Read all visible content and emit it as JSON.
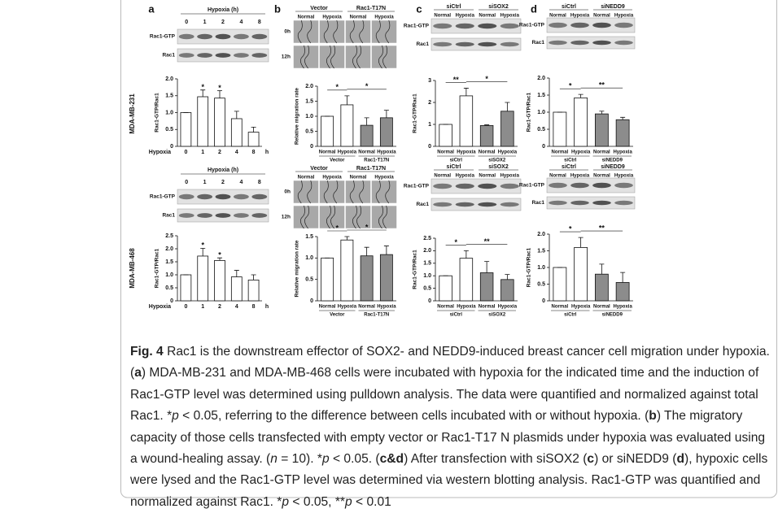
{
  "panels": [
    "a",
    "b",
    "c",
    "d"
  ],
  "cell_lines": [
    "MDA-MB-231",
    "MDA-MB-468"
  ],
  "blots": [
    {
      "header": "Hypoxia (h)",
      "lanes": [
        "0",
        "1",
        "2",
        "4",
        "8"
      ],
      "rows": [
        "Rac1-GTP",
        "Rac1"
      ]
    },
    {
      "header": "Hypoxia (h)",
      "lanes": [
        "0",
        "1",
        "2",
        "4",
        "8"
      ],
      "rows": [
        "Rac1-GTP",
        "Rac1"
      ]
    },
    {
      "groups": [
        "Vector",
        "Rac1-T17N"
      ],
      "lanes": [
        "Normal",
        "Hypoxia",
        "Normal",
        "Hypoxia"
      ],
      "rows": [
        "0h",
        "12h"
      ]
    },
    {
      "groups": [
        "Vector",
        "Rac1-T17N"
      ],
      "lanes": [
        "Normal",
        "Hypoxia",
        "Normal",
        "Hypoxia"
      ],
      "rows": [
        "0h",
        "12h"
      ]
    },
    {
      "groups": [
        "siCtrl",
        "siSOX2"
      ],
      "lanes": [
        "Normal",
        "Hypoxia",
        "Normal",
        "Hypoxia"
      ],
      "rows": [
        "Rac1-GTP",
        "Rac1"
      ]
    },
    {
      "groups": [
        "siCtrl",
        "siSOX2"
      ],
      "lanes": [
        "Normal",
        "Hypoxia",
        "Normal",
        "Hypoxia"
      ],
      "rows": [
        "Rac1-GTP",
        "Rac1"
      ]
    },
    {
      "groups": [
        "siCtrl",
        "siNEDD9"
      ],
      "lanes": [
        "Normal",
        "Hypoxia",
        "Normal",
        "Hypoxia"
      ],
      "rows": [
        "Rac1-GTP",
        "Rac1"
      ]
    },
    {
      "groups": [
        "siCtrl",
        "siNEDD9"
      ],
      "lanes": [
        "Normal",
        "Hypoxia",
        "Normal",
        "Hypoxia"
      ],
      "rows": [
        "Rac1-GTP",
        "Rac1"
      ]
    }
  ],
  "chart_data": [
    {
      "type": "bar",
      "ylabel": "Rac1-GTP/Rac1",
      "xlabel": "Hypoxia",
      "xunit": "h",
      "categories": [
        "0",
        "1",
        "2",
        "4",
        "8"
      ],
      "values": [
        1.0,
        1.47,
        1.43,
        0.82,
        0.42
      ],
      "errors": [
        0,
        0.2,
        0.22,
        0.22,
        0.15
      ],
      "colors": [
        "#ffffff",
        "#ffffff",
        "#ffffff",
        "#ffffff",
        "#ffffff"
      ],
      "ylim": [
        0,
        2
      ],
      "yticks": [
        0,
        0.5,
        {
          "value": 1,
          "label": "1.0"
        },
        1.5,
        {
          "value": 2,
          "label": "2.0"
        }
      ],
      "annotations": [
        {
          "text": "*",
          "at": 1
        },
        {
          "text": "*",
          "at": 2
        }
      ]
    },
    {
      "type": "bar",
      "ylabel": "Rac1-GTP/Rac1",
      "xlabel": "Hypoxia",
      "xunit": "h",
      "categories": [
        "0",
        "1",
        "2",
        "4",
        "8"
      ],
      "values": [
        1.0,
        1.72,
        1.55,
        0.92,
        0.8
      ],
      "errors": [
        0,
        0.3,
        0.1,
        0.25,
        0.2
      ],
      "colors": [
        "#ffffff",
        "#ffffff",
        "#ffffff",
        "#ffffff",
        "#ffffff"
      ],
      "ylim": [
        0,
        2.5
      ],
      "yticks": [
        0,
        0.5,
        {
          "value": 1,
          "label": "1.0"
        },
        1.5,
        {
          "value": 2,
          "label": "2.0"
        },
        2.5
      ],
      "annotations": [
        {
          "text": "*",
          "at": 1
        },
        {
          "text": "*",
          "at": 2
        }
      ]
    },
    {
      "type": "bar",
      "ylabel": "Relative migration rate",
      "categories": [
        "Normal",
        "Hypoxia",
        "Normal",
        "Hypoxia"
      ],
      "groups": [
        "Vector",
        "Rac1-T17N"
      ],
      "values": [
        1.0,
        1.38,
        0.7,
        0.95
      ],
      "errors": [
        0,
        0.3,
        0.25,
        0.25
      ],
      "colors": [
        "#ffffff",
        "#ffffff",
        "#8c8c8c",
        "#8c8c8c"
      ],
      "ylim": [
        0,
        2
      ],
      "yticks": [
        0,
        0.5,
        {
          "value": 1,
          "label": "1.0"
        },
        1.5,
        {
          "value": 2,
          "label": "2.0"
        }
      ],
      "annotations": [
        {
          "text": "*",
          "from": 0,
          "to": 1
        },
        {
          "text": "*",
          "from": 1,
          "to": 3
        }
      ]
    },
    {
      "type": "bar",
      "ylabel": "Relative migration rate",
      "categories": [
        "Normal",
        "Hypoxia",
        "Normal",
        "Hypoxia"
      ],
      "groups": [
        "Vector",
        "Rac1-T17N"
      ],
      "values": [
        1.0,
        1.42,
        1.05,
        1.08
      ],
      "errors": [
        0,
        0.08,
        0.2,
        0.2
      ],
      "colors": [
        "#ffffff",
        "#ffffff",
        "#8c8c8c",
        "#8c8c8c"
      ],
      "ylim": [
        0,
        1.5
      ],
      "yticks": [
        0,
        0.5,
        {
          "value": 1,
          "label": "1.0"
        },
        1.5
      ],
      "annotations": [
        {
          "text": "*",
          "from": 0,
          "to": 1
        },
        {
          "text": "*",
          "from": 1,
          "to": 3
        }
      ]
    },
    {
      "type": "bar",
      "ylabel": "Rac1-GTP/Rac1",
      "categories": [
        "Normal",
        "Hypoxia",
        "Normal",
        "Hypoxia"
      ],
      "groups": [
        "siCtrl",
        "siSOX2"
      ],
      "values": [
        1.0,
        2.3,
        0.95,
        1.6
      ],
      "errors": [
        0,
        0.35,
        0.03,
        0.4
      ],
      "colors": [
        "#ffffff",
        "#ffffff",
        "#8c8c8c",
        "#8c8c8c"
      ],
      "ylim": [
        0,
        3
      ],
      "yticks": [
        0,
        1,
        2,
        3
      ],
      "annotations": [
        {
          "text": "**",
          "from": 0,
          "to": 1
        },
        {
          "text": "*",
          "from": 1,
          "to": 3
        }
      ]
    },
    {
      "type": "bar",
      "ylabel": "Rac1-GTP/Rac1",
      "categories": [
        "Normal",
        "Hypoxia",
        "Normal",
        "Hypoxia"
      ],
      "groups": [
        "siCtrl",
        "siSOX2"
      ],
      "values": [
        1.0,
        1.7,
        1.12,
        0.85
      ],
      "errors": [
        0,
        0.3,
        0.45,
        0.2
      ],
      "colors": [
        "#ffffff",
        "#ffffff",
        "#8c8c8c",
        "#8c8c8c"
      ],
      "ylim": [
        0,
        2.5
      ],
      "yticks": [
        0,
        0.5,
        {
          "value": 1,
          "label": "1.0"
        },
        1.5,
        {
          "value": 2,
          "label": "2.0"
        },
        2.5
      ],
      "annotations": [
        {
          "text": "*",
          "from": 0,
          "to": 1
        },
        {
          "text": "**",
          "from": 1,
          "to": 3
        }
      ]
    },
    {
      "type": "bar",
      "ylabel": "Rac1-GTP/Rac1",
      "categories": [
        "Normal",
        "Hypoxia",
        "Normal",
        "Hypoxia"
      ],
      "groups": [
        "siCtrl",
        "siNEDD9"
      ],
      "values": [
        1.0,
        1.42,
        0.95,
        0.78
      ],
      "errors": [
        0,
        0.1,
        0.08,
        0.07
      ],
      "colors": [
        "#ffffff",
        "#ffffff",
        "#8c8c8c",
        "#8c8c8c"
      ],
      "ylim": [
        0,
        2
      ],
      "yticks": [
        0,
        0.5,
        {
          "value": 1,
          "label": "1.0"
        },
        1.5,
        {
          "value": 2,
          "label": "2.0"
        }
      ],
      "annotations": [
        {
          "text": "*",
          "from": 0,
          "to": 1
        },
        {
          "text": "**",
          "from": 1,
          "to": 3
        }
      ]
    },
    {
      "type": "bar",
      "ylabel": "Rac1-GTP/Rac1",
      "categories": [
        "Normal",
        "Hypoxia",
        "Normal",
        "Hypoxia"
      ],
      "groups": [
        "siCtrl",
        "siNEDD9"
      ],
      "values": [
        1.0,
        1.6,
        0.8,
        0.55
      ],
      "errors": [
        0,
        0.3,
        0.3,
        0.3
      ],
      "colors": [
        "#ffffff",
        "#ffffff",
        "#8c8c8c",
        "#8c8c8c"
      ],
      "ylim": [
        0,
        2
      ],
      "yticks": [
        0,
        0.5,
        {
          "value": 1,
          "label": "1.0"
        },
        1.5,
        {
          "value": 2,
          "label": "2.0"
        }
      ],
      "annotations": [
        {
          "text": "*",
          "from": 0,
          "to": 1
        },
        {
          "text": "**",
          "from": 1,
          "to": 3
        }
      ]
    }
  ],
  "caption": {
    "parts": [
      "Fig. 4",
      " Rac1 is the downstream effector of SOX2- and NEDD9-induced breast cancer cell migration under hypoxia. (",
      "a",
      ") MDA-MB-231 and MDA-MB-468 cells were incubated with hypoxia for the indicated time and the induction of Rac1-GTP level was determined using pulldown analysis. The data were quantified and normalized against total Rac1. *",
      "p",
      " < 0.05, referring to the difference between cells incubated with or without hypoxia. (",
      "b",
      ") The migratory capacity of those cells transfected with empty vector or Rac1-T17 N plasmids under hypoxia was evaluated using a wound-healing assay. (",
      "n",
      " = 10). *",
      "p",
      " < 0.05. (",
      "c&d",
      ") After transfection with siSOX2 (",
      "c",
      ") or siNEDD9 (",
      "d",
      "), hypoxic cells were lysed and the Rac1-GTP level was determined via western blotting analysis. Rac1-GTP was quantified and normalized against Rac1. *",
      "p",
      " < 0.05, **",
      "p",
      " < 0.01"
    ]
  }
}
